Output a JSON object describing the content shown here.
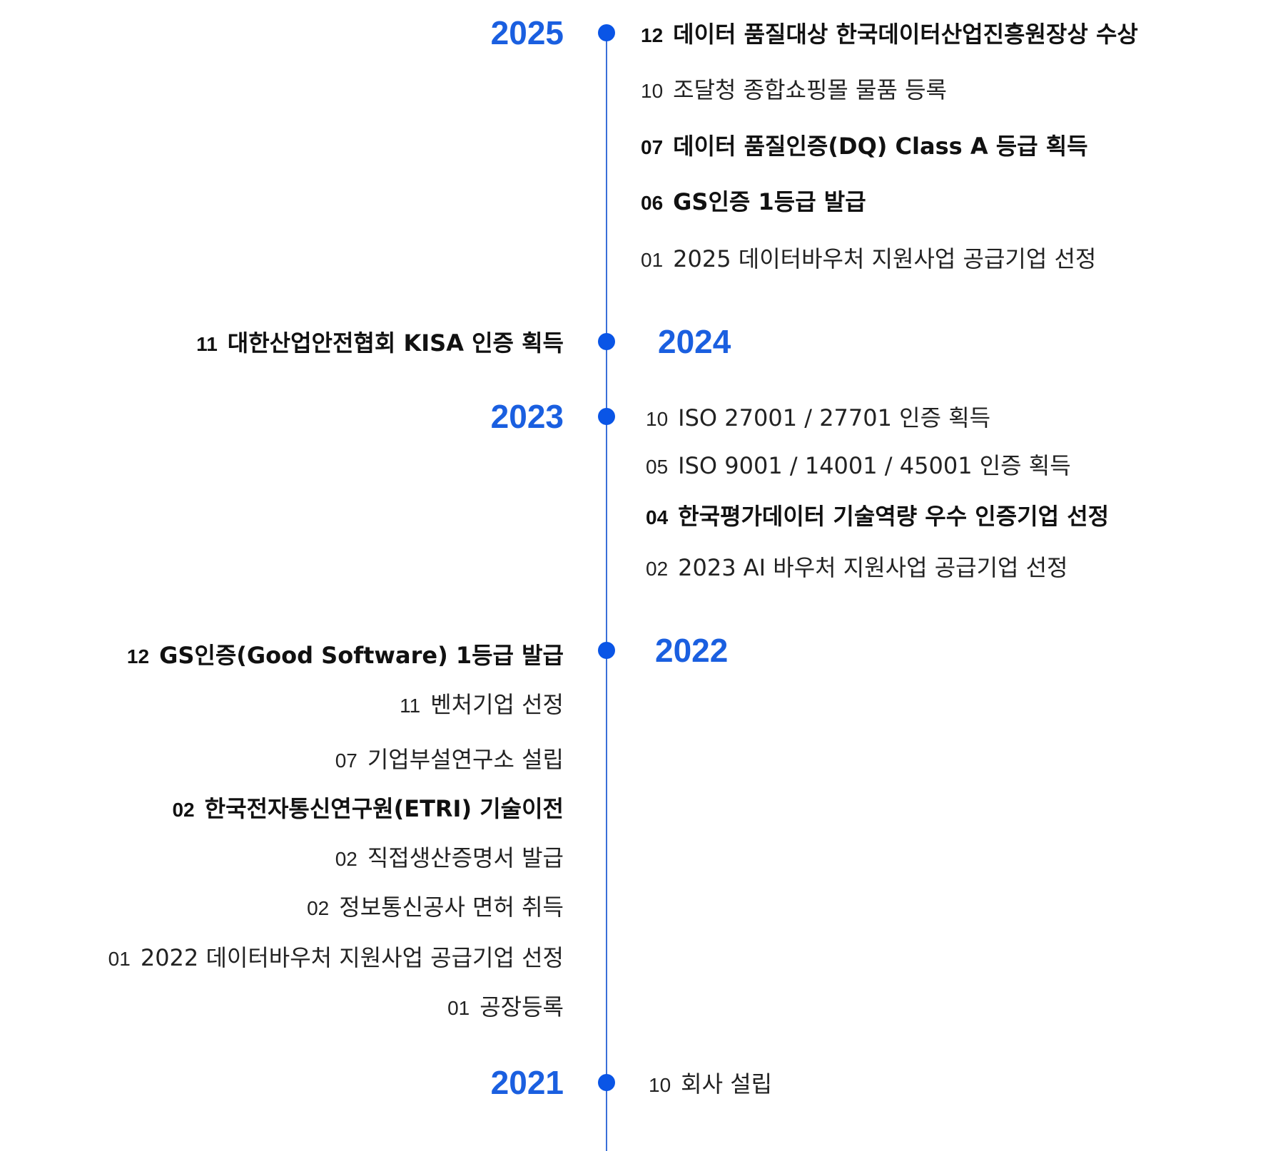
{
  "timeline": [
    {
      "year": "2025",
      "year_side": "left",
      "items": [
        {
          "month": "12",
          "text": "데이터 품질대상 한국데이터산업진흥원장상 수상",
          "bold": true
        },
        {
          "month": "10",
          "text": "조달청 종합쇼핑몰 물품 등록",
          "bold": false
        },
        {
          "month": "07",
          "text": "데이터 품질인증(DQ) Class A 등급 획득",
          "bold": true
        },
        {
          "month": "06",
          "text": "GS인증 1등급 발급",
          "bold": true
        },
        {
          "month": "01",
          "text": "2025 데이터바우처 지원사업 공급기업 선정",
          "bold": false
        }
      ]
    },
    {
      "year": "2024",
      "year_side": "right",
      "items": [
        {
          "month": "11",
          "text": "대한산업안전협회 KISA 인증 획득",
          "bold": true
        }
      ]
    },
    {
      "year": "2023",
      "year_side": "left",
      "items": [
        {
          "month": "10",
          "text": "ISO 27001 / 27701 인증 획득",
          "bold": false
        },
        {
          "month": "05",
          "text": "ISO 9001 / 14001 / 45001 인증 획득",
          "bold": false
        },
        {
          "month": "04",
          "text": "한국평가데이터 기술역량 우수 인증기업 선정",
          "bold": true
        },
        {
          "month": "02",
          "text": "2023 AI 바우처 지원사업 공급기업 선정",
          "bold": false
        }
      ]
    },
    {
      "year": "2022",
      "year_side": "right",
      "items": [
        {
          "month": "12",
          "text": "GS인증(Good Software) 1등급 발급",
          "bold": true
        },
        {
          "month": "11",
          "text": "벤처기업 선정",
          "bold": false
        },
        {
          "month": "07",
          "text": "기업부설연구소 설립",
          "bold": false
        },
        {
          "month": "02",
          "text": "한국전자통신연구원(ETRI) 기술이전",
          "bold": true
        },
        {
          "month": "02",
          "text": "직접생산증명서 발급",
          "bold": false
        },
        {
          "month": "02",
          "text": "정보통신공사 면허 취득",
          "bold": false
        },
        {
          "month": "01",
          "text": "2022 데이터바우처 지원사업 공급기업 선정",
          "bold": false
        },
        {
          "month": "01",
          "text": "공장등록",
          "bold": false
        }
      ]
    },
    {
      "year": "2021",
      "year_side": "left",
      "items": [
        {
          "month": "10",
          "text": "회사 설립",
          "bold": false
        }
      ]
    }
  ]
}
